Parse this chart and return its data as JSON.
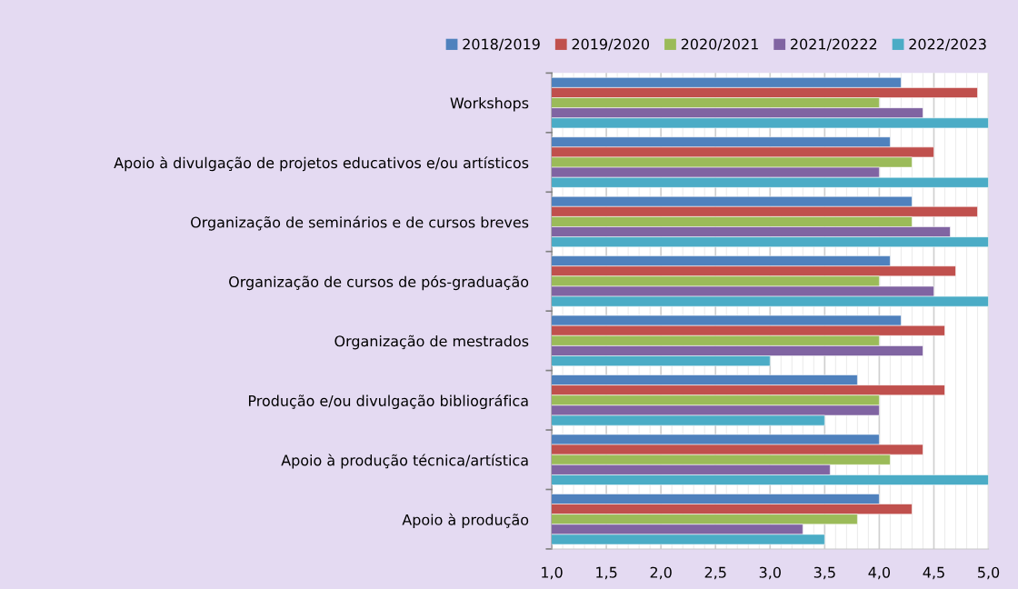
{
  "chart_data": {
    "type": "bar",
    "orientation": "horizontal",
    "categories": [
      "Workshops",
      "Apoio à divulgação de projetos educativos e/ou artísticos",
      "Organização de seminários e de cursos breves",
      "Organização de cursos de pós-graduação",
      "Organização de mestrados",
      "Produção e/ou divulgação bibliográfica",
      "Apoio à produção técnica/artística",
      "Apoio à produção"
    ],
    "series": [
      {
        "name": "2018/2019",
        "color": "#4f81bd",
        "values": [
          4.2,
          4.1,
          4.3,
          4.1,
          4.2,
          3.8,
          4.0,
          4.0
        ]
      },
      {
        "name": "2019/2020",
        "color": "#c0504d",
        "values": [
          4.9,
          4.5,
          4.9,
          4.7,
          4.6,
          4.6,
          4.4,
          4.3
        ]
      },
      {
        "name": "2020/2021",
        "color": "#9bbb59",
        "values": [
          4.0,
          4.3,
          4.3,
          4.0,
          4.0,
          4.0,
          4.1,
          3.8
        ]
      },
      {
        "name": "2021/20222",
        "color": "#8064a2",
        "values": [
          4.4,
          4.0,
          4.65,
          4.5,
          4.4,
          4.0,
          3.55,
          3.3
        ]
      },
      {
        "name": "2022/2023",
        "color": "#4bacc6",
        "values": [
          5.0,
          5.0,
          5.0,
          5.0,
          3.0,
          3.5,
          5.0,
          3.5
        ]
      }
    ],
    "xlim": [
      1.0,
      5.0
    ],
    "xticks": [
      {
        "value": 1.0,
        "label": "1,0"
      },
      {
        "value": 1.5,
        "label": "1,5"
      },
      {
        "value": 2.0,
        "label": "2,0"
      },
      {
        "value": 2.5,
        "label": "2,5"
      },
      {
        "value": 3.0,
        "label": "3,0"
      },
      {
        "value": 3.5,
        "label": "3,5"
      },
      {
        "value": 4.0,
        "label": "4,0"
      },
      {
        "value": 4.5,
        "label": "4,5"
      },
      {
        "value": 5.0,
        "label": "5,0"
      }
    ],
    "grid": "x",
    "legend": "top"
  }
}
